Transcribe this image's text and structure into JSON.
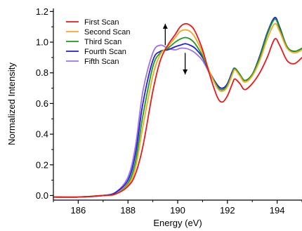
{
  "chart_data": {
    "type": "line",
    "title": "",
    "xlabel": "Energy (eV)",
    "ylabel": "Normalized Intensity",
    "xlim": [
      185,
      195
    ],
    "ylim": [
      -0.03,
      1.22
    ],
    "x_ticks": [
      186,
      188,
      190,
      192,
      194
    ],
    "y_ticks": [
      0.0,
      0.2,
      0.4,
      0.6,
      0.8,
      1.0,
      1.2
    ],
    "x_tick_labels": [
      "186",
      "188",
      "190",
      "192",
      "194"
    ],
    "y_tick_labels": [
      "0.0",
      "0.2",
      "0.4",
      "0.6",
      "0.8",
      "1.0",
      "1.2"
    ],
    "grid": false,
    "legend_position": "top-left",
    "annotations": [
      {
        "type": "arrow",
        "direction": "up",
        "x": 189.5,
        "y_from": 0.98,
        "y_to": 1.12
      },
      {
        "type": "arrow",
        "direction": "down",
        "x": 190.3,
        "y_from": 0.93,
        "y_to": 0.79
      }
    ],
    "series": [
      {
        "name": "First Scan",
        "color": "#e41a1c",
        "x": [
          185,
          186,
          187,
          187.5,
          188,
          188.3,
          188.6,
          189.0,
          189.3,
          189.6,
          189.9,
          190.1,
          190.3,
          190.5,
          190.7,
          191.0,
          191.3,
          191.6,
          191.8,
          192.0,
          192.2,
          192.3,
          192.5,
          192.7,
          193.0,
          193.3,
          193.6,
          193.9,
          194.1,
          194.4,
          194.7,
          195.0
        ],
        "values": [
          -0.01,
          -0.01,
          0.0,
          0.01,
          0.06,
          0.14,
          0.32,
          0.68,
          0.88,
          0.98,
          1.05,
          1.1,
          1.12,
          1.11,
          1.07,
          0.95,
          0.78,
          0.64,
          0.61,
          0.65,
          0.73,
          0.76,
          0.73,
          0.69,
          0.73,
          0.8,
          0.9,
          1.02,
          0.98,
          0.88,
          0.86,
          0.9
        ]
      },
      {
        "name": "Second Scan",
        "color": "#f5a623",
        "x": [
          185,
          186,
          187,
          187.5,
          188,
          188.3,
          188.6,
          189.0,
          189.3,
          189.6,
          189.9,
          190.1,
          190.3,
          190.5,
          190.7,
          191.0,
          191.3,
          191.6,
          191.8,
          192.0,
          192.2,
          192.3,
          192.5,
          192.7,
          193.0,
          193.3,
          193.6,
          193.9,
          194.1,
          194.4,
          194.7,
          195.0
        ],
        "values": [
          -0.01,
          -0.01,
          0.0,
          0.01,
          0.07,
          0.18,
          0.45,
          0.78,
          0.92,
          0.97,
          1.03,
          1.07,
          1.08,
          1.07,
          1.03,
          0.93,
          0.8,
          0.7,
          0.68,
          0.71,
          0.79,
          0.82,
          0.78,
          0.74,
          0.78,
          0.88,
          1.02,
          1.12,
          1.07,
          0.96,
          0.93,
          0.95
        ]
      },
      {
        "name": "Third Scan",
        "color": "#1a9a1a",
        "x": [
          185,
          186,
          187,
          187.5,
          188,
          188.3,
          188.6,
          189.0,
          189.3,
          189.6,
          189.9,
          190.1,
          190.3,
          190.5,
          190.7,
          191.0,
          191.3,
          191.6,
          191.8,
          192.0,
          192.2,
          192.3,
          192.5,
          192.7,
          193.0,
          193.3,
          193.6,
          193.9,
          194.1,
          194.4,
          194.7,
          195.0
        ],
        "values": [
          -0.01,
          -0.01,
          0.0,
          0.01,
          0.08,
          0.22,
          0.52,
          0.84,
          0.93,
          0.96,
          1.0,
          1.02,
          1.03,
          1.02,
          0.99,
          0.91,
          0.8,
          0.71,
          0.69,
          0.72,
          0.8,
          0.83,
          0.79,
          0.75,
          0.79,
          0.9,
          1.05,
          1.15,
          1.09,
          0.97,
          0.94,
          0.96
        ]
      },
      {
        "name": "Fourth Scan",
        "color": "#1f1fd6",
        "x": [
          185,
          186,
          187,
          187.5,
          188,
          188.3,
          188.6,
          189.0,
          189.3,
          189.6,
          189.9,
          190.1,
          190.3,
          190.5,
          190.7,
          191.0,
          191.3,
          191.6,
          191.8,
          192.0,
          192.2,
          192.3,
          192.5,
          192.7,
          193.0,
          193.3,
          193.6,
          193.9,
          194.1,
          194.4,
          194.7,
          195.0
        ],
        "values": [
          -0.01,
          -0.01,
          0.0,
          0.02,
          0.1,
          0.27,
          0.6,
          0.88,
          0.94,
          0.95,
          0.97,
          0.98,
          0.99,
          0.98,
          0.96,
          0.9,
          0.8,
          0.72,
          0.7,
          0.73,
          0.81,
          0.83,
          0.79,
          0.75,
          0.79,
          0.91,
          1.06,
          1.16,
          1.1,
          0.97,
          0.94,
          0.96
        ]
      },
      {
        "name": "Fifth Scan",
        "color": "#a070e8",
        "x": [
          185,
          186,
          187,
          187.5,
          188,
          188.3,
          188.6,
          189.0,
          189.3,
          189.6,
          189.9,
          190.1,
          190.3,
          190.5,
          190.7,
          191.0,
          191.3,
          191.6,
          191.8,
          192.0,
          192.2,
          192.3,
          192.5,
          192.7,
          193.0,
          193.3,
          193.6,
          193.9,
          194.1,
          194.4,
          194.7,
          195.0
        ],
        "values": [
          -0.01,
          -0.01,
          0.0,
          0.02,
          0.12,
          0.32,
          0.68,
          0.93,
          0.98,
          0.96,
          0.95,
          0.96,
          0.96,
          0.95,
          0.93,
          0.88,
          0.79,
          0.71,
          0.69,
          0.72,
          0.8,
          0.83,
          0.79,
          0.75,
          0.79,
          0.9,
          1.05,
          1.15,
          1.09,
          0.97,
          0.94,
          0.96
        ]
      }
    ]
  }
}
